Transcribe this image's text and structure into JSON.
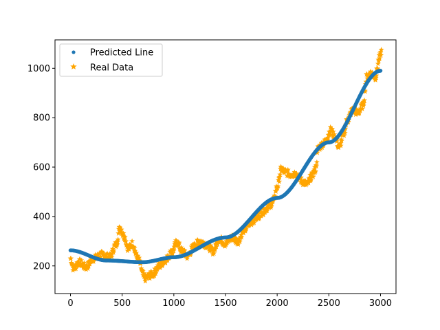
{
  "chart_data": {
    "type": "scatter",
    "xlim": [
      -150,
      3150
    ],
    "ylim": [
      88,
      1115
    ],
    "xticks": [
      0,
      500,
      1000,
      1500,
      2000,
      2500,
      3000
    ],
    "yticks": [
      200,
      400,
      600,
      800,
      1000
    ],
    "grid": false,
    "legend_position": "top-left",
    "legend": [
      {
        "label": "Predicted Line",
        "marker": "point",
        "color": "#1f77b4"
      },
      {
        "label": "Real Data",
        "marker": "star",
        "color": "#ffa500"
      }
    ],
    "series": [
      {
        "name": "Predicted Line",
        "marker": "point",
        "color": "#1f77b4",
        "fit": "quadratic",
        "x_range": [
          0,
          3000
        ],
        "points": [
          [
            0,
            263
          ],
          [
            350,
            222
          ],
          [
            700,
            215
          ],
          [
            1000,
            235
          ],
          [
            1500,
            315
          ],
          [
            2000,
            475
          ],
          [
            2500,
            700
          ],
          [
            3000,
            990
          ]
        ]
      },
      {
        "name": "Real Data",
        "marker": "star",
        "color": "#ffa500",
        "points": [
          [
            0,
            230
          ],
          [
            30,
            190
          ],
          [
            80,
            215
          ],
          [
            150,
            195
          ],
          [
            220,
            230
          ],
          [
            300,
            245
          ],
          [
            380,
            235
          ],
          [
            440,
            285
          ],
          [
            480,
            355
          ],
          [
            520,
            320
          ],
          [
            560,
            270
          ],
          [
            600,
            290
          ],
          [
            650,
            230
          ],
          [
            720,
            150
          ],
          [
            790,
            165
          ],
          [
            860,
            200
          ],
          [
            920,
            225
          ],
          [
            980,
            255
          ],
          [
            1030,
            295
          ],
          [
            1080,
            260
          ],
          [
            1130,
            240
          ],
          [
            1200,
            280
          ],
          [
            1250,
            300
          ],
          [
            1320,
            285
          ],
          [
            1380,
            260
          ],
          [
            1440,
            310
          ],
          [
            1500,
            290
          ],
          [
            1560,
            315
          ],
          [
            1620,
            300
          ],
          [
            1680,
            345
          ],
          [
            1740,
            375
          ],
          [
            1800,
            395
          ],
          [
            1860,
            420
          ],
          [
            1920,
            440
          ],
          [
            1960,
            460
          ],
          [
            2000,
            520
          ],
          [
            2040,
            590
          ],
          [
            2080,
            580
          ],
          [
            2130,
            570
          ],
          [
            2180,
            575
          ],
          [
            2210,
            555
          ],
          [
            2250,
            540
          ],
          [
            2290,
            530
          ],
          [
            2330,
            560
          ],
          [
            2370,
            590
          ],
          [
            2400,
            680
          ],
          [
            2460,
            700
          ],
          [
            2520,
            750
          ],
          [
            2560,
            720
          ],
          [
            2600,
            680
          ],
          [
            2640,
            730
          ],
          [
            2680,
            790
          ],
          [
            2730,
            830
          ],
          [
            2780,
            820
          ],
          [
            2830,
            850
          ],
          [
            2870,
            970
          ],
          [
            2910,
            980
          ],
          [
            2950,
            965
          ],
          [
            2990,
            1040
          ],
          [
            3010,
            1070
          ]
        ]
      }
    ]
  }
}
